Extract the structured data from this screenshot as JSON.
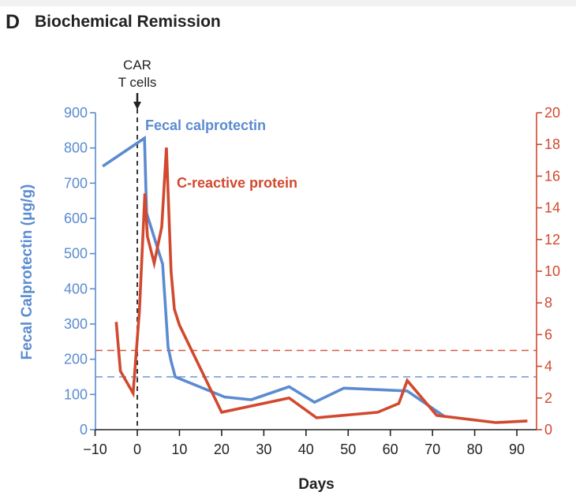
{
  "panel": {
    "letter": "D",
    "title": "Biochemical Remission"
  },
  "chart_data": {
    "type": "line",
    "title": "Biochemical Remission",
    "xlabel": "Days",
    "ylabel": "Fecal Calprotectin (μg/g)",
    "ylabel_right": "",
    "xlim": [
      -10,
      95
    ],
    "ylim": [
      0,
      900
    ],
    "ylim_right": [
      0,
      20
    ],
    "x_ticks": [
      -10,
      0,
      10,
      20,
      30,
      40,
      50,
      60,
      70,
      80,
      90
    ],
    "x_tick_labels": [
      "−10",
      "0",
      "10",
      "20",
      "30",
      "40",
      "50",
      "60",
      "70",
      "80",
      "90"
    ],
    "y_ticks": [
      0,
      100,
      200,
      300,
      400,
      500,
      600,
      700,
      800,
      900
    ],
    "y_ticks_right": [
      0,
      2,
      4,
      6,
      8,
      10,
      12,
      14,
      16,
      18,
      20
    ],
    "grid": false,
    "annotation": {
      "line1": "CAR",
      "line2": "T cells",
      "x": 0
    },
    "series": [
      {
        "name": "Fecal calprotectin",
        "axis": "left",
        "color": "#5b8bd0",
        "x": [
          -8.2,
          1.7,
          2.2,
          6,
          7.3,
          8,
          9,
          20.7,
          27,
          36,
          42,
          49,
          64,
          73
        ],
        "values": [
          748,
          828,
          615,
          470,
          235,
          195,
          150,
          93,
          85,
          122,
          78,
          118,
          110,
          36
        ]
      },
      {
        "name": "C-reactive protein",
        "axis": "right",
        "color": "#d1492f",
        "x": [
          -5,
          -4,
          -1,
          0.5,
          1.8,
          2.4,
          4,
          5.8,
          6.9,
          8,
          8.8,
          10,
          20,
          36,
          42.5,
          57,
          62,
          64,
          71,
          85,
          92.5
        ],
        "values": [
          6.8,
          3.7,
          2.3,
          7.5,
          14.9,
          12.2,
          10.5,
          12.8,
          17.8,
          10,
          7.6,
          6.6,
          1.1,
          2.0,
          0.75,
          1.1,
          1.65,
          3.1,
          0.9,
          0.45,
          0.55
        ]
      }
    ],
    "reference_lines": [
      {
        "name": "Fecal calprotectin threshold",
        "axis": "left",
        "value": 150,
        "color": "#5b8bd0",
        "style": "dashed"
      },
      {
        "name": "C-reactive protein threshold",
        "axis": "right",
        "value": 5,
        "color": "#d1492f",
        "style": "dashed"
      }
    ],
    "series_labels": {
      "blue": "Fecal calprotectin",
      "red": "C-reactive protein"
    }
  }
}
